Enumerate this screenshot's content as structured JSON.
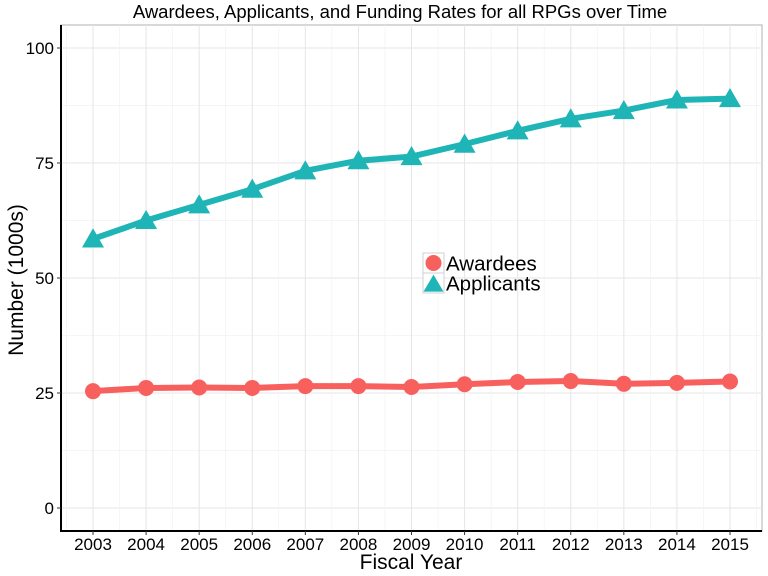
{
  "chart_data": {
    "type": "line",
    "title": "Awardees, Applicants, and Funding Rates for all RPGs over Time",
    "xlabel": "Fiscal Year",
    "ylabel": "Number (1000s)",
    "x": [
      "2003",
      "2004",
      "2005",
      "2006",
      "2007",
      "2008",
      "2009",
      "2010",
      "2011",
      "2012",
      "2013",
      "2014",
      "2015"
    ],
    "ylim": [
      -4,
      105
    ],
    "yticks": [
      0,
      25,
      50,
      75,
      100
    ],
    "grid": true,
    "legend_position": "center",
    "series": [
      {
        "name": "Awardees",
        "marker": "circle",
        "color": "#F8605E",
        "values": [
          25.4,
          26.1,
          26.2,
          26.1,
          26.5,
          26.5,
          26.3,
          26.9,
          27.4,
          27.6,
          27.0,
          27.2,
          27.5
        ]
      },
      {
        "name": "Applicants",
        "marker": "triangle",
        "color": "#1FB5B6",
        "values": [
          58.5,
          62.5,
          65.9,
          69.3,
          73.3,
          75.5,
          76.4,
          79.1,
          82.0,
          84.6,
          86.4,
          88.7,
          89.0
        ]
      }
    ]
  }
}
